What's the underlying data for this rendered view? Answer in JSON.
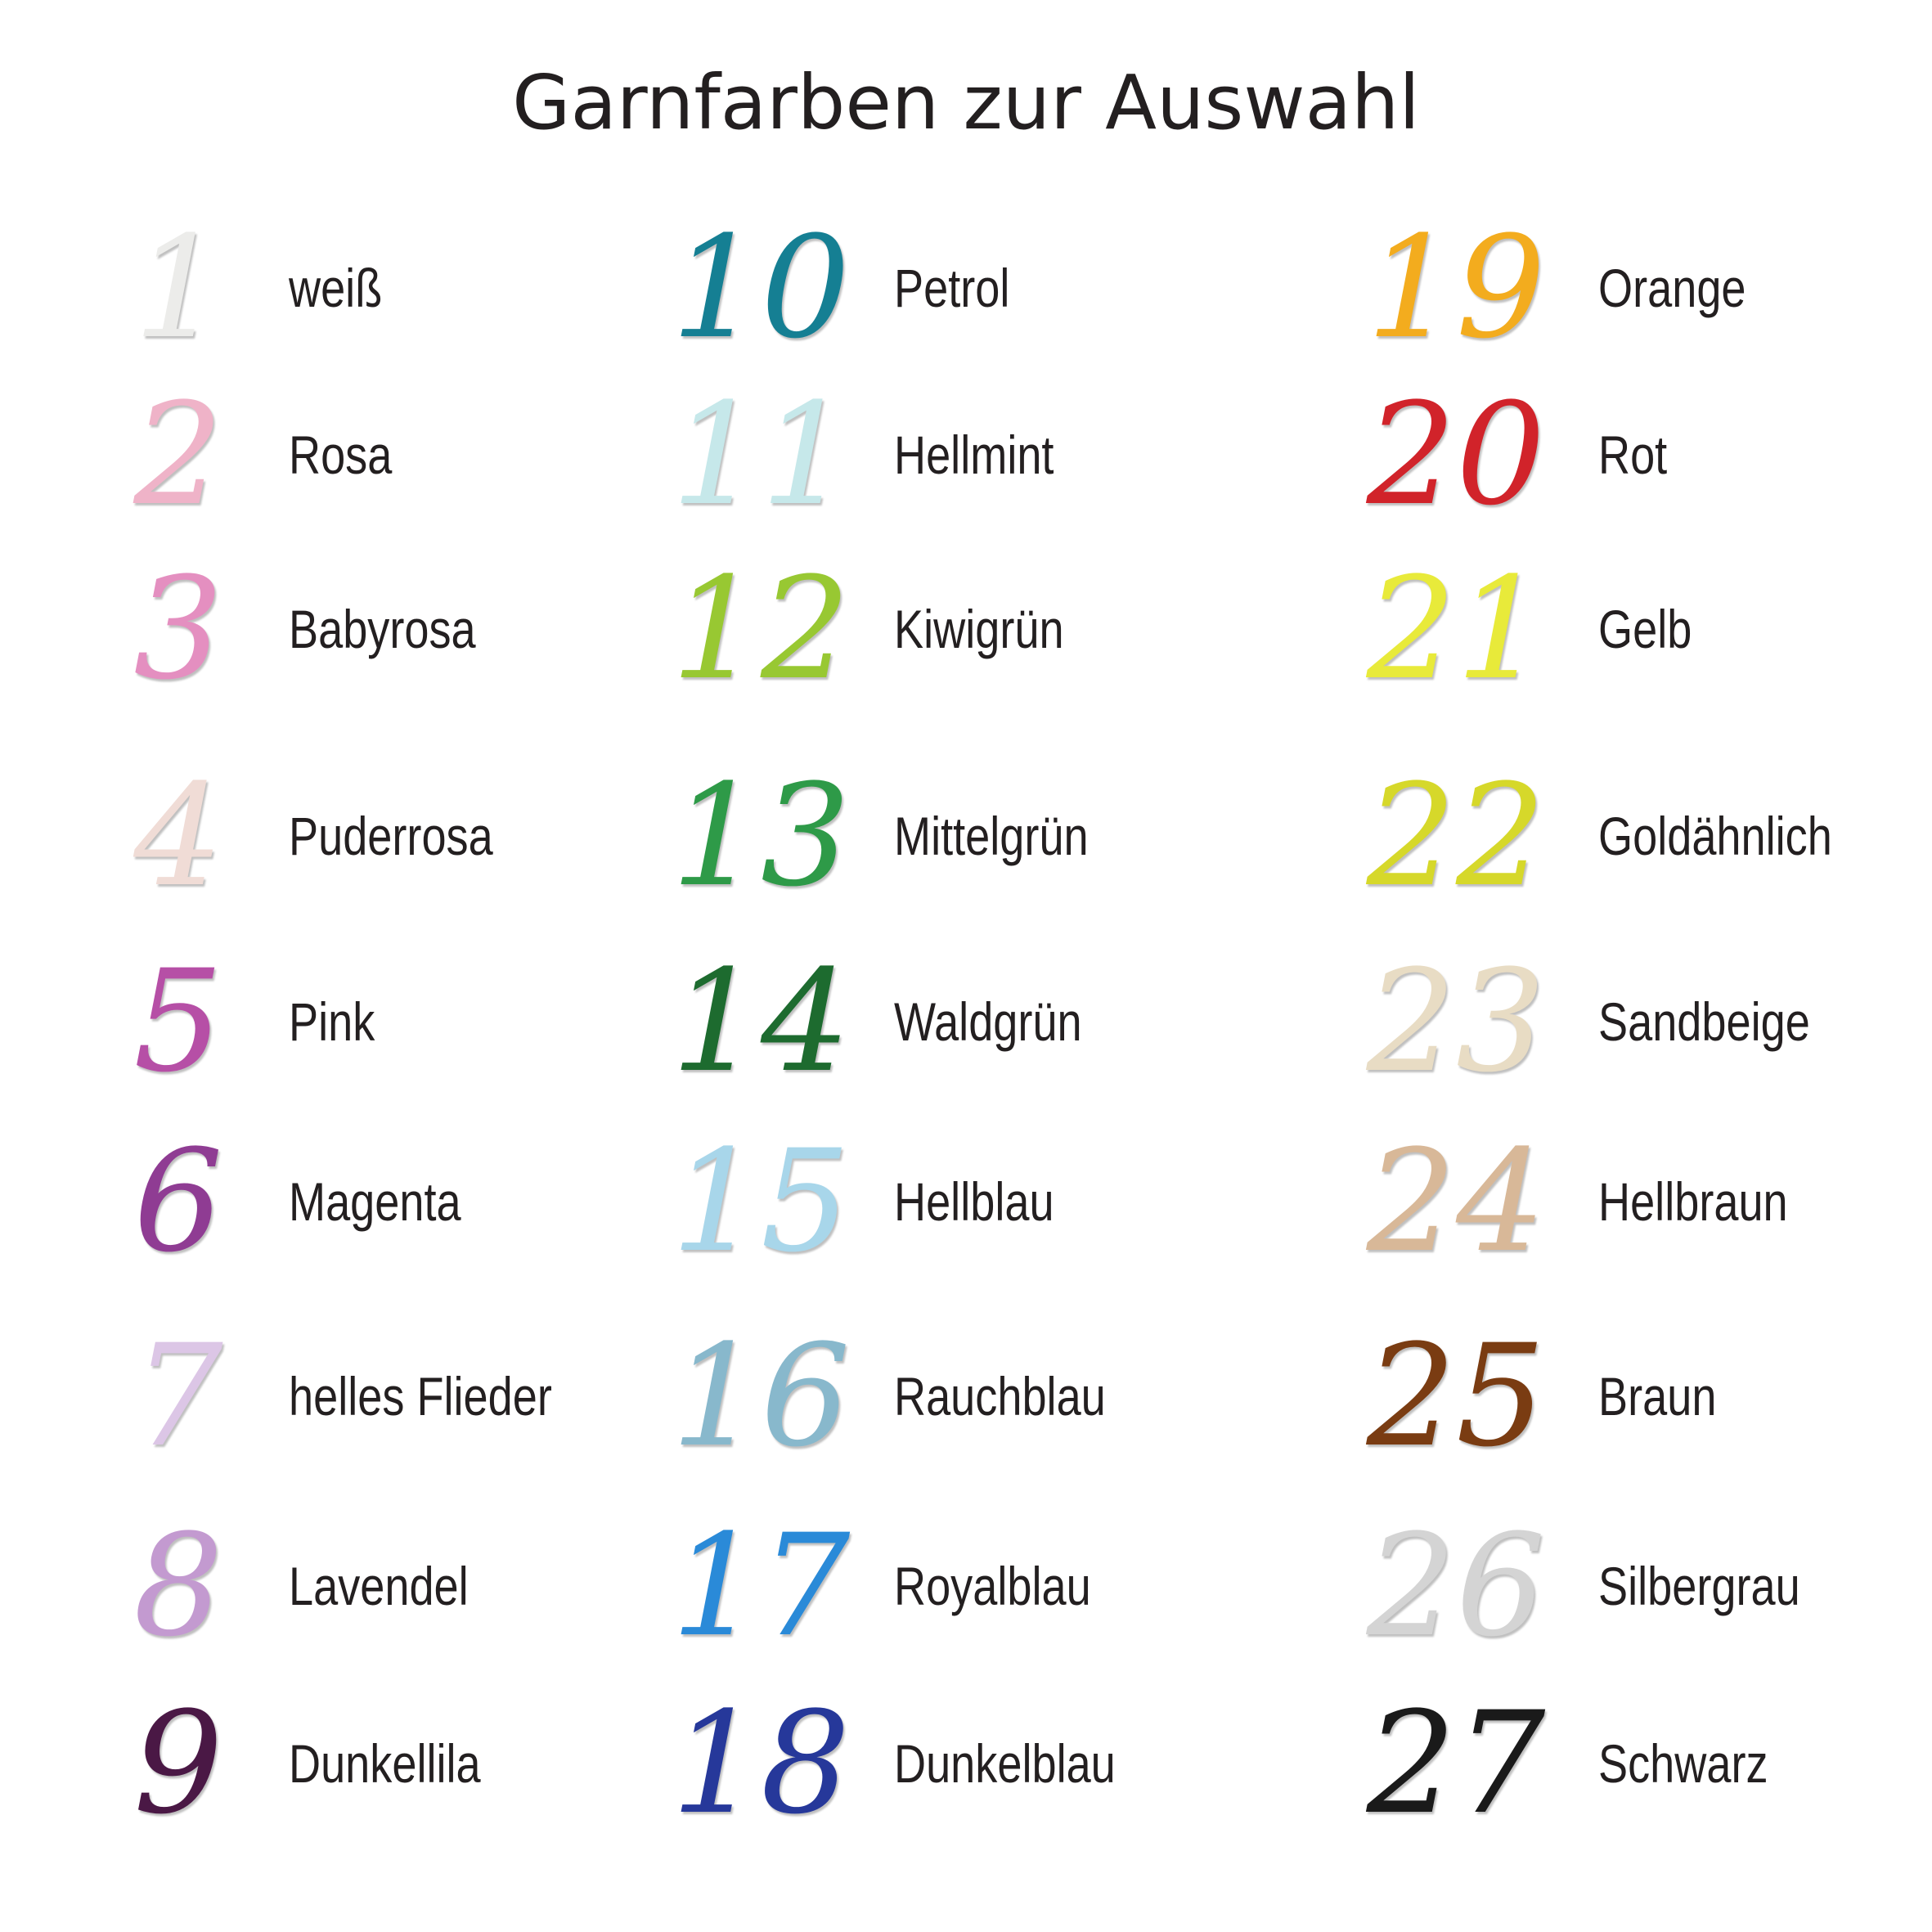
{
  "title": "Garnfarben zur Auswahl",
  "colors": [
    {
      "number": "1",
      "name": "weiß",
      "color": "#ececea"
    },
    {
      "number": "2",
      "name": "Rosa",
      "color": "#efb3c8"
    },
    {
      "number": "3",
      "name": "Babyrosa",
      "color": "#e48fc0"
    },
    {
      "number": "4",
      "name": "Puderrosa",
      "color": "#f0dcd6"
    },
    {
      "number": "5",
      "name": "Pink",
      "color": "#b64fa6"
    },
    {
      "number": "6",
      "name": "Magenta",
      "color": "#8f3c93"
    },
    {
      "number": "7",
      "name": "helles Flieder",
      "color": "#dcc6e6"
    },
    {
      "number": "8",
      "name": "Lavendel",
      "color": "#c39ad0"
    },
    {
      "number": "9",
      "name": "Dunkellila",
      "color": "#4a1845"
    },
    {
      "number": "10",
      "name": "Petrol",
      "color": "#157f93"
    },
    {
      "number": "11",
      "name": "Hellmint",
      "color": "#c6e8ea"
    },
    {
      "number": "12",
      "name": "Kiwigrün",
      "color": "#98c832"
    },
    {
      "number": "13",
      "name": "Mittelgrün",
      "color": "#2e9a48"
    },
    {
      "number": "14",
      "name": "Waldgrün",
      "color": "#1d6b2f"
    },
    {
      "number": "15",
      "name": "Hellblau",
      "color": "#a8d6ea"
    },
    {
      "number": "16",
      "name": "Rauchblau",
      "color": "#88b8cc"
    },
    {
      "number": "17",
      "name": "Royalblau",
      "color": "#2a8ad8"
    },
    {
      "number": "18",
      "name": "Dunkelblau",
      "color": "#26389a"
    },
    {
      "number": "19",
      "name": "Orange",
      "color": "#f3ac1e"
    },
    {
      "number": "20",
      "name": "Rot",
      "color": "#d1232a"
    },
    {
      "number": "21",
      "name": "Gelb",
      "color": "#e8ea3a"
    },
    {
      "number": "22",
      "name": "Goldähnlich",
      "color": "#d6d82a"
    },
    {
      "number": "23",
      "name": "Sandbeige",
      "color": "#e8dcc4"
    },
    {
      "number": "24",
      "name": "Hellbraun",
      "color": "#d8b898"
    },
    {
      "number": "25",
      "name": "Braun",
      "color": "#7a3c12"
    },
    {
      "number": "26",
      "name": "Silbergrau",
      "color": "#d4d4d4"
    },
    {
      "number": "27",
      "name": "Schwarz",
      "color": "#1a1a1a"
    }
  ]
}
